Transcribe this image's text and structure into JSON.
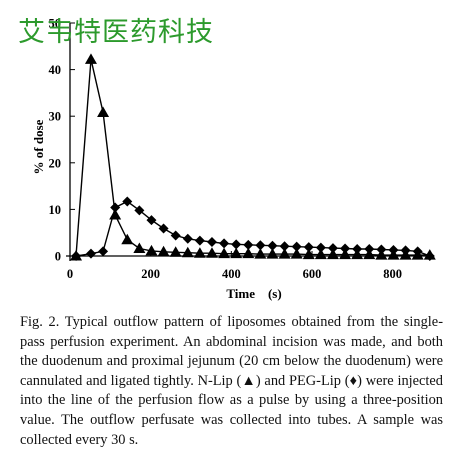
{
  "watermark": "艾韦特医药科技",
  "caption": "Fig. 2. Typical outflow pattern of liposomes obtained from the single-pass perfusion experiment. An abdominal incision was made, and both the duodenum and proximal jejunum (20 cm below the duodenum) were cannulated and ligated tightly. N-Lip (▲) and PEG-Lip (♦) were injected into the line of the perfusion flow as a pulse by using a three-position value. The outflow perfusate was collected into tubes. A sample was collected every 30 s.",
  "chart_data": {
    "type": "line",
    "xlabel": "Time    (s)",
    "ylabel": "% of dose",
    "xlim": [
      0,
      900
    ],
    "ylim": [
      0,
      50
    ],
    "x_ticks": [
      0,
      200,
      400,
      600,
      800
    ],
    "y_ticks": [
      0,
      10,
      20,
      30,
      40,
      50
    ],
    "grid": false,
    "series": [
      {
        "name": "N-Lip",
        "marker": "triangle",
        "color": "#000000",
        "x": [
          15,
          52,
          82,
          112,
          142,
          172,
          202,
          232,
          262,
          292,
          322,
          352,
          382,
          412,
          442,
          472,
          502,
          532,
          562,
          592,
          622,
          652,
          682,
          712,
          742,
          772,
          802,
          832,
          862,
          892
        ],
        "y": [
          0,
          42.2,
          30.8,
          8.8,
          3.5,
          1.6,
          1.1,
          0.9,
          0.8,
          0.7,
          0.6,
          0.6,
          0.5,
          0.5,
          0.5,
          0.4,
          0.4,
          0.4,
          0.4,
          0.3,
          0.3,
          0.3,
          0.3,
          0.3,
          0.3,
          0.2,
          0.2,
          0.2,
          0.2,
          0.2
        ]
      },
      {
        "name": "PEG-Lip",
        "marker": "diamond",
        "color": "#000000",
        "x": [
          15,
          52,
          82,
          112,
          142,
          172,
          202,
          232,
          262,
          292,
          322,
          352,
          382,
          412,
          442,
          472,
          502,
          532,
          562,
          592,
          622,
          652,
          682,
          712,
          742,
          772,
          802,
          832,
          862,
          892
        ],
        "y": [
          0,
          0.5,
          1.0,
          10.4,
          11.7,
          9.8,
          7.7,
          5.9,
          4.4,
          3.7,
          3.3,
          3.0,
          2.7,
          2.5,
          2.4,
          2.3,
          2.2,
          2.1,
          2.0,
          1.9,
          1.8,
          1.7,
          1.6,
          1.5,
          1.5,
          1.4,
          1.3,
          1.2,
          1.0,
          0
        ]
      }
    ]
  }
}
